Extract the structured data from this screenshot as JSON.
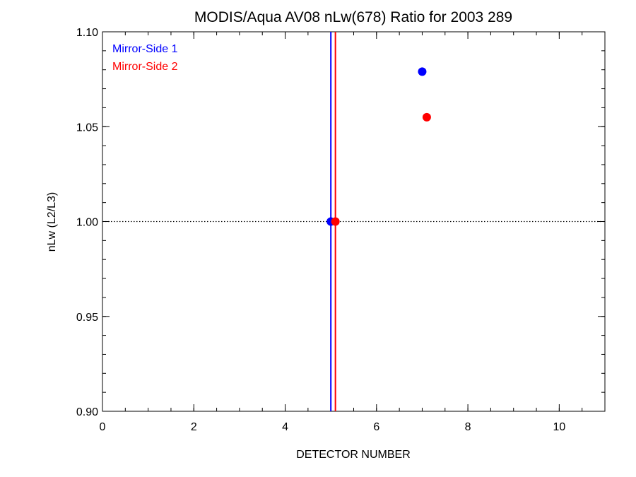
{
  "chart_data": {
    "type": "scatter",
    "title": "MODIS/Aqua AV08 nLw(678) Ratio for 2003 289",
    "xlabel": "DETECTOR NUMBER",
    "ylabel": "nLw (L2/L3)",
    "xlim": [
      0,
      11
    ],
    "ylim": [
      0.9,
      1.1
    ],
    "x_ticks": [
      0,
      2,
      4,
      6,
      8,
      10
    ],
    "x_tick_labels": [
      "0",
      "2",
      "4",
      "6",
      "8",
      "10"
    ],
    "y_ticks": [
      0.9,
      0.95,
      1.0,
      1.05,
      1.1
    ],
    "y_tick_labels": [
      "0.90",
      "0.95",
      "1.00",
      "1.05",
      "1.10"
    ],
    "x_minor_step": 0.5,
    "y_minor_step": 0.01,
    "grid": false,
    "legend_position": "top-left",
    "reference_line": {
      "y": 1.0,
      "style": "dotted",
      "color": "#000000"
    },
    "series": [
      {
        "name": "Mirror-Side 1",
        "color": "#0000ff",
        "points": [
          {
            "x": 5.0,
            "y": 1.0
          },
          {
            "x": 7.0,
            "y": 1.079
          }
        ],
        "vline_x": 5.0
      },
      {
        "name": "Mirror-Side 2",
        "color": "#ff0000",
        "points": [
          {
            "x": 5.1,
            "y": 1.0
          },
          {
            "x": 7.1,
            "y": 1.055
          }
        ],
        "vline_x": 5.1
      }
    ]
  }
}
